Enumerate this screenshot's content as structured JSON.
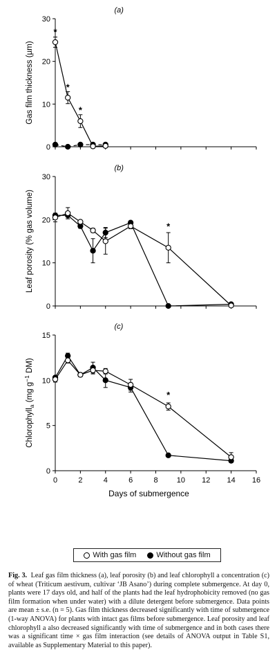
{
  "chart_data": [
    {
      "type": "line",
      "panel_label": "(a)",
      "ylabel": "Gas film thickness (µm)",
      "ylim": [
        0,
        30
      ],
      "yticks": [
        0,
        10,
        20,
        30
      ],
      "xlim": [
        0,
        16
      ],
      "x_tick_labels_shown": false,
      "grid": false,
      "series": [
        {
          "name": "With gas film",
          "marker": "open-circle",
          "line": "solid",
          "x": [
            0,
            1,
            2,
            3,
            4
          ],
          "y": [
            24.5,
            11.5,
            6.0,
            0.1,
            0.2
          ],
          "error": [
            1.2,
            1.4,
            1.5,
            0.2,
            0.3
          ]
        },
        {
          "name": "Without gas film",
          "marker": "filled-circle",
          "line": "dashed",
          "x": [
            0,
            1,
            2,
            3,
            4
          ],
          "y": [
            0.5,
            0.0,
            0.5,
            0.5,
            0.5
          ],
          "error": [
            0,
            0,
            0,
            0,
            0
          ]
        }
      ],
      "annotations": [
        {
          "text": "*",
          "x": 0,
          "y": 27.0
        },
        {
          "text": "*",
          "x": 1,
          "y": 14.0
        },
        {
          "text": "*",
          "x": 2,
          "y": 8.7
        }
      ]
    },
    {
      "type": "line",
      "panel_label": "(b)",
      "ylabel": "Leaf porosity (% gas volume)",
      "ylim": [
        0,
        30
      ],
      "yticks": [
        0,
        10,
        20,
        30
      ],
      "xlim": [
        0,
        16
      ],
      "x_tick_labels_shown": false,
      "grid": false,
      "series": [
        {
          "name": "With gas film",
          "marker": "open-circle",
          "line": "solid",
          "x": [
            0,
            1,
            2,
            3,
            4,
            6,
            9,
            14
          ],
          "y": [
            20.5,
            21.5,
            19.5,
            17.5,
            15.0,
            18.5,
            13.5,
            0.1
          ],
          "error": [
            1.0,
            1.3,
            0.4,
            0.5,
            3.0,
            0.6,
            3.5,
            0.4
          ]
        },
        {
          "name": "Without gas film",
          "marker": "filled-circle",
          "line": "solid",
          "x": [
            0,
            1,
            2,
            3,
            4,
            6,
            9,
            14
          ],
          "y": [
            21.0,
            21.0,
            18.5,
            12.8,
            17.0,
            19.3,
            0.0,
            0.4
          ],
          "error": [
            0.5,
            0.8,
            0.5,
            2.8,
            1.2,
            0.4,
            0,
            0.3
          ]
        }
      ],
      "annotations": [
        {
          "text": "*",
          "x": 9,
          "y": 18.5
        }
      ]
    },
    {
      "type": "line",
      "panel_label": "(c)",
      "ylabel": "Chlorophyll_a (mg g^-1 DM)",
      "ylim": [
        0,
        15
      ],
      "yticks": [
        0,
        5,
        10,
        15
      ],
      "xlim": [
        0,
        16
      ],
      "xticks": [
        0,
        2,
        4,
        6,
        8,
        10,
        12,
        14,
        16
      ],
      "xlabel": "Days of submergence",
      "grid": false,
      "series": [
        {
          "name": "With gas film",
          "marker": "open-circle",
          "line": "solid",
          "x": [
            0,
            1,
            2,
            3,
            4,
            6,
            9,
            14
          ],
          "y": [
            10.1,
            12.2,
            10.6,
            11.1,
            11.0,
            9.5,
            7.1,
            1.5
          ],
          "error": [
            0.3,
            0.3,
            0.2,
            0.4,
            0.3,
            0.6,
            0.4,
            0.5
          ]
        },
        {
          "name": "Without gas film",
          "marker": "filled-circle",
          "line": "solid",
          "x": [
            0,
            1,
            2,
            3,
            4,
            6,
            9,
            14
          ],
          "y": [
            10.3,
            12.7,
            10.6,
            11.4,
            10.0,
            9.2,
            1.7,
            1.1
          ],
          "error": [
            0.2,
            0.3,
            0.2,
            0.6,
            0.8,
            0.5,
            0.1,
            0.2
          ]
        }
      ],
      "annotations": [
        {
          "text": "*",
          "x": 9,
          "y": 8.4
        }
      ]
    }
  ],
  "legend": {
    "with_gas_film": "With gas film",
    "without_gas_film": "Without gas film"
  },
  "caption": {
    "label": "Fig. 3.",
    "text": "Leaf gas film thickness (a), leaf porosity (b) and leaf chlorophyll a concentration (c) of wheat (Triticum aestivum, cultivar ‘JB Asano’) during complete submergence. At day 0, plants were 17 days old, and half of the plants had the leaf hydrophobicity removed (no gas film formation when under water) with a dilute detergent before submergence. Data points are mean ± s.e. (n = 5). Gas film thickness decreased significantly with time of submergence (1-way ANOVA) for plants with intact gas films before submergence. Leaf porosity and leaf chlorophyll a also decreased significantly with time of submergence and in both cases there was a significant time × gas film interaction (see details of ANOVA output in Table S1, available as Supplementary Material to this paper)."
  },
  "colors": {
    "ink": "#000000",
    "background": "#ffffff"
  }
}
